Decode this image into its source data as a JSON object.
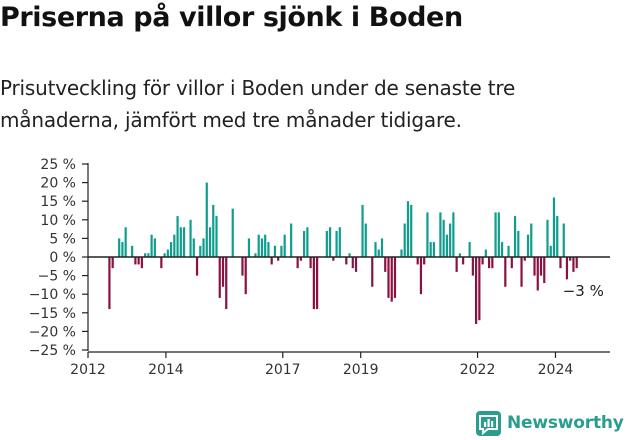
{
  "title": "Priserna på villor sjönk i Boden",
  "subtitle": "Prisutveckling för villor i Boden under de senaste tre månaderna, jämfört med tre månader tidigare.",
  "brand": "Newsworthy",
  "colors": {
    "positive": "#0f9e8e",
    "negative": "#8a1243",
    "zero_line": "#222222",
    "brand": "#2a9d8f"
  },
  "chart_data": {
    "type": "bar",
    "title": "",
    "xlabel": "",
    "ylabel": "",
    "ylim": [
      -25,
      25
    ],
    "y_ticks": [
      25,
      20,
      15,
      10,
      5,
      0,
      -5,
      -10,
      -15,
      -20,
      -25
    ],
    "y_tick_labels": [
      "25 %",
      "20 %",
      "15 %",
      "10 %",
      "5 %",
      "0 %",
      "−5 %",
      "−10 %",
      "−15 %",
      "−20 %",
      "−25 %"
    ],
    "x_range": [
      2012.0,
      2025.4
    ],
    "x_ticks": [
      2012,
      2014,
      2017,
      2019,
      2022,
      2024
    ],
    "x_tick_labels": [
      "2012",
      "2014",
      "2017",
      "2019",
      "2022",
      "2024"
    ],
    "grid": false,
    "x_step_years": 0.0833,
    "x_start": 2012.55,
    "values": [
      -14,
      -3,
      0,
      5,
      4,
      8,
      0,
      3,
      -2,
      -2,
      -3,
      1,
      1,
      6,
      5,
      0,
      -3,
      1,
      2,
      4,
      6,
      11,
      8,
      8,
      0,
      10,
      5,
      -5,
      3,
      5,
      20,
      8,
      14,
      11,
      -11,
      -8,
      -14,
      0,
      13,
      0,
      0,
      -5,
      -10,
      5,
      0,
      1,
      6,
      5,
      6,
      4,
      -2,
      3,
      -1,
      3,
      6,
      0,
      9,
      0,
      -3,
      -1,
      7,
      8,
      -3,
      -14,
      -14,
      0,
      0,
      7,
      8,
      -1,
      7,
      8,
      0,
      -2,
      1,
      -3,
      -4,
      0,
      14,
      9,
      0,
      -8,
      4,
      2,
      5,
      -4,
      -11,
      -12,
      -11,
      0,
      2,
      9,
      15,
      14,
      0,
      -2,
      -10,
      -2,
      12,
      4,
      4,
      0,
      12,
      10,
      6,
      9,
      12,
      -4,
      1,
      -2,
      0,
      4,
      -5,
      -18,
      -17,
      -2,
      2,
      -3,
      -3,
      12,
      12,
      4,
      -8,
      3,
      -3,
      11,
      7,
      -8,
      -1,
      6,
      9,
      -5,
      -9,
      -5,
      -7,
      10,
      3,
      16,
      11,
      -3,
      9,
      -6,
      -1,
      -4,
      -3
    ],
    "annotation": {
      "text": "−3 %",
      "value": -3
    }
  }
}
